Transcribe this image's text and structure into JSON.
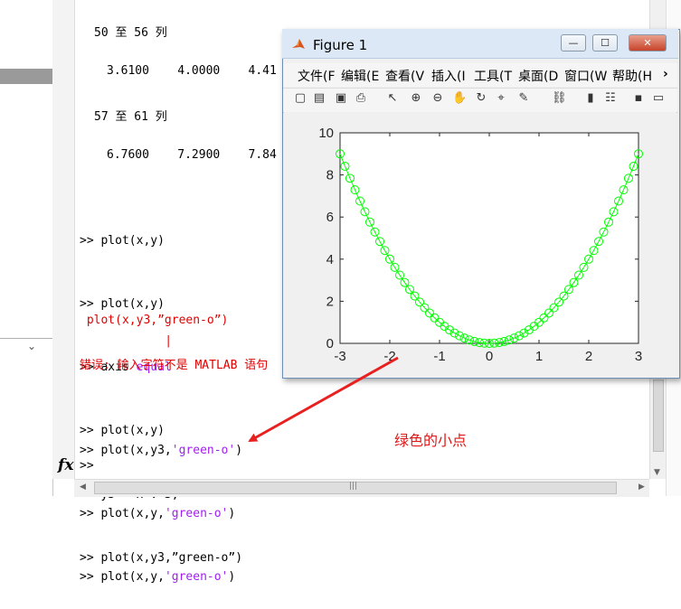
{
  "console": {
    "col_header_1": "50 至 56 列",
    "row_1": "3.6100    4.0000    4.41",
    "col_header_2": "57 至 61 列",
    "row_2": "6.7600    7.2900    7.84",
    "lines": [
      {
        "prompt": ">> ",
        "code": "plot(x,y)",
        "str": "",
        "tail": ""
      },
      {
        "prompt": ">> ",
        "code": "plot(x,y)",
        "str": "",
        "tail": ""
      },
      {
        "prompt": ">> ",
        "code": "axis ",
        "str": "equal",
        "tail": ""
      },
      {
        "prompt": ">> ",
        "code": "plot(x,y)",
        "str": "",
        "tail": ""
      },
      {
        "prompt": ">> ",
        "code": "y3 = x .^3;",
        "str": "",
        "tail": ""
      },
      {
        "prompt": ">> ",
        "code": "plot(x,y3,”green-o”)",
        "str": "",
        "tail": ""
      }
    ],
    "err_echo": " plot(x,y3,”green-o”)",
    "err_caret": "          |",
    "err_message": "错误: 输入字符不是 MATLAB 语句",
    "lines2": [
      {
        "prompt": ">> ",
        "code": "plot(x,y3,",
        "str": "'green-o'",
        "tail": ")"
      },
      {
        "prompt": ">> ",
        "code": "plot(x,y,",
        "str": "'green-o'",
        "tail": ")"
      },
      {
        "prompt": ">> ",
        "code": "plot(x,y,",
        "str": "'green-o'",
        "tail": ")"
      }
    ],
    "prompt_empty": ">>",
    "fx_label": "fx"
  },
  "figure": {
    "title": "Figure 1",
    "menu": [
      "文件(F",
      "编辑(E",
      "查看(V",
      "插入(I",
      "工具(T",
      "桌面(D",
      "窗口(W",
      "帮助(H"
    ],
    "menu_more": "›",
    "toolbar_icons": [
      "new-figure-icon",
      "open-icon",
      "save-icon",
      "print-icon",
      "pointer-icon",
      "zoom-in-icon",
      "zoom-out-icon",
      "pan-icon",
      "rotate-icon",
      "data-cursor-icon",
      "brush-icon",
      "link-icon",
      "colorbar-icon",
      "legend-icon",
      "hide-plot-tools-icon",
      "show-plot-tools-icon"
    ],
    "toolbar_glyphs": [
      "▢",
      "▤",
      "▣",
      "⎙",
      "↖",
      "⊕",
      "⊖",
      "✋",
      "↻",
      "⌖",
      "✎",
      "⛓",
      "▮",
      "☷",
      "▪",
      "▭"
    ],
    "minimize": "—",
    "maximize": "☐",
    "close": "✕"
  },
  "chart_data": {
    "type": "line",
    "marker": "o",
    "color": "#00ff00",
    "x": [
      -3.0,
      -2.9,
      -2.8,
      -2.7,
      -2.6,
      -2.5,
      -2.4,
      -2.3,
      -2.2,
      -2.1,
      -2.0,
      -1.9,
      -1.8,
      -1.7,
      -1.6,
      -1.5,
      -1.4,
      -1.3,
      -1.2,
      -1.1,
      -1.0,
      -0.9,
      -0.8,
      -0.7,
      -0.6,
      -0.5,
      -0.4,
      -0.3,
      -0.2,
      -0.1,
      0.0,
      0.1,
      0.2,
      0.3,
      0.4,
      0.5,
      0.6,
      0.7,
      0.8,
      0.9,
      1.0,
      1.1,
      1.2,
      1.3,
      1.4,
      1.5,
      1.6,
      1.7,
      1.8,
      1.9,
      2.0,
      2.1,
      2.2,
      2.3,
      2.4,
      2.5,
      2.6,
      2.7,
      2.8,
      2.9,
      3.0
    ],
    "y": [
      9.0,
      8.41,
      7.84,
      7.29,
      6.76,
      6.25,
      5.76,
      5.29,
      4.84,
      4.41,
      4.0,
      3.61,
      3.24,
      2.89,
      2.56,
      2.25,
      1.96,
      1.69,
      1.44,
      1.21,
      1.0,
      0.81,
      0.64,
      0.49,
      0.36,
      0.25,
      0.16,
      0.09,
      0.04,
      0.01,
      0.0,
      0.01,
      0.04,
      0.09,
      0.16,
      0.25,
      0.36,
      0.49,
      0.64,
      0.81,
      1.0,
      1.21,
      1.44,
      1.69,
      1.96,
      2.25,
      2.56,
      2.89,
      3.24,
      3.61,
      4.0,
      4.41,
      4.84,
      5.29,
      5.76,
      6.25,
      6.76,
      7.29,
      7.84,
      8.41,
      9.0
    ],
    "xlim": [
      -3,
      3
    ],
    "ylim": [
      0,
      10
    ],
    "xticks": [
      -3,
      -2,
      -1,
      0,
      1,
      2,
      3
    ],
    "yticks": [
      0,
      2,
      4,
      6,
      8,
      10
    ],
    "title": "",
    "xlabel": "",
    "ylabel": ""
  },
  "annotation": {
    "text": "绿色的小点",
    "arrow_color": "#e82020"
  }
}
